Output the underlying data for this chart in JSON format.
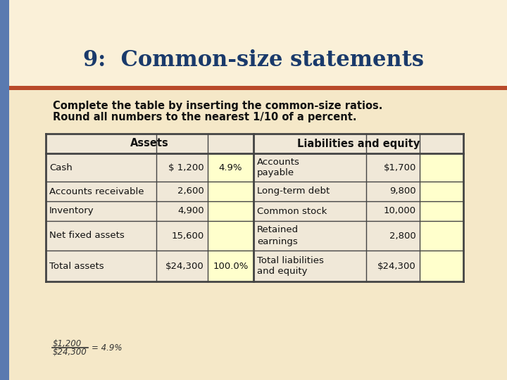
{
  "title": "9:  Common-size statements",
  "subtitle_line1": "Complete the table by inserting the common-size ratios.",
  "subtitle_line2": "Round all numbers to the nearest 1/10 of a percent.",
  "title_color": "#1a3a6b",
  "accent_bar_color": "#b84a2a",
  "left_bar_color": "#5a7ab0",
  "table_border_color": "#444444",
  "table_cell_bg": "#f0e8d8",
  "table_yellow_bg": "#ffffcc",
  "formula_text": "$1,200",
  "formula_denom": "$24,300",
  "formula_result": "= 4.9%",
  "bg_color": "#f5e8c8",
  "bg_top_color": "#faf0d8",
  "rows": [
    [
      "Cash",
      "$ 1,200",
      "4.9%",
      "Accounts\npayable",
      "$1,700",
      ""
    ],
    [
      "Accounts receivable",
      "2,600",
      "",
      "Long-term debt",
      "9,800",
      ""
    ],
    [
      "Inventory",
      "4,900",
      "",
      "Common stock",
      "10,000",
      ""
    ],
    [
      "Net fixed assets",
      "15,600",
      "",
      "Retained\nearnings",
      "2,800",
      ""
    ],
    [
      "Total assets",
      "$24,300",
      "100.0%",
      "Total liabilities\nand equity",
      "$24,300",
      ""
    ]
  ]
}
